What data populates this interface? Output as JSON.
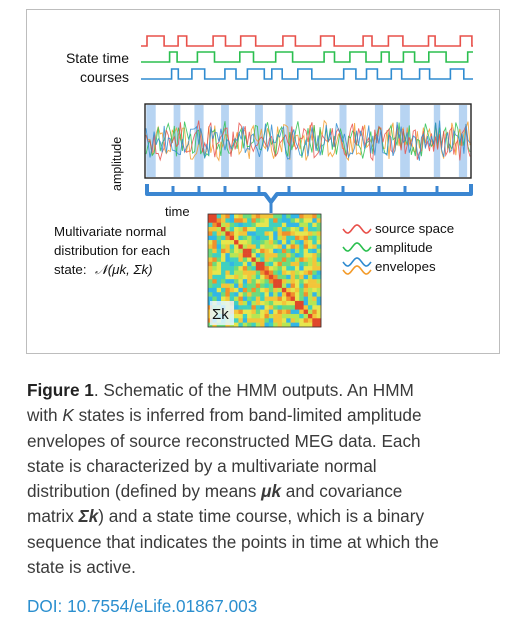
{
  "figure": {
    "state_label_line1": "State time",
    "state_label_line2": "courses",
    "ylabel": "amplitude",
    "xlabel": "time",
    "mvn_line1": "Multivariate normal",
    "mvn_line2": "distribution for each",
    "mvn_line3": "state:",
    "mvn_formula": "𝒩(μk, Σk)",
    "sigma_label": "Σk",
    "legend_line1": "source space",
    "legend_line2": "amplitude",
    "legend_line3": "envelopes",
    "colors": {
      "red": "#e8504a",
      "green": "#2bbf4f",
      "blue": "#2f8bd0",
      "orange": "#f39b2a",
      "highlight": "#9fc6ee"
    }
  },
  "caption": {
    "fig_label": "Figure 1",
    "line1": ". Schematic of the HMM outputs. An HMM",
    "line2_a": "with ",
    "line2_k": "K",
    "line2_b": " states is inferred from band-limited amplitude",
    "line3": "envelopes of source reconstructed MEG data. Each",
    "line4": "state is characterized by a multivariate normal",
    "line5_a": "distribution (defined by means ",
    "line5_mu": "μk",
    "line5_b": " and covariance",
    "line6_a": "matrix ",
    "line6_sigma": "Σk",
    "line6_b": ") and a state time course, which is a binary",
    "line7": "sequence that indicates the points in time at which the",
    "line8": "state is active."
  },
  "doi": "DOI: 10.7554/eLife.01867.003"
}
